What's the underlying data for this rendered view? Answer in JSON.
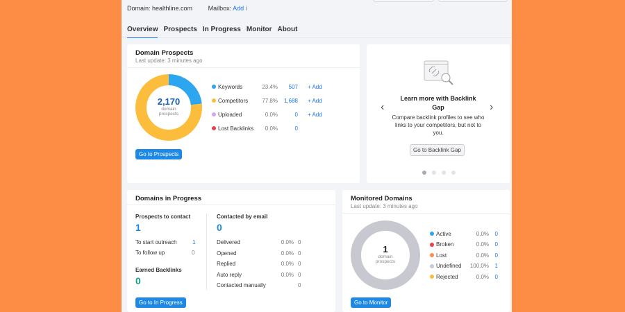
{
  "header": {
    "domain_label": "Domain: healthline.com",
    "mailbox_label": "Mailbox:",
    "mailbox_add": "Add",
    "info": "i"
  },
  "tabs": [
    {
      "label": "Overview",
      "active": true
    },
    {
      "label": "Prospects"
    },
    {
      "label": "In Progress"
    },
    {
      "label": "Monitor"
    },
    {
      "label": "About"
    }
  ],
  "domain_prospects": {
    "title": "Domain Prospects",
    "subtitle": "Last update: 3 minutes ago",
    "total": "2,170",
    "total_caption_1": "domain",
    "total_caption_2": "prospects",
    "items": [
      {
        "label": "Keywords",
        "pct": "23.4%",
        "count": "507",
        "add": "+  Add",
        "color": "#2ca6ef",
        "value": 23.4
      },
      {
        "label": "Competitors",
        "pct": "77.8%",
        "count": "1,688",
        "add": "+  Add",
        "color": "#fdbd3c",
        "value": 77.8
      },
      {
        "label": "Uploaded",
        "pct": "0.0%",
        "count": "0",
        "add": "+  Add",
        "color": "#d6a6f0",
        "value": 0
      },
      {
        "label": "Lost Backlinks",
        "pct": "0.0%",
        "count": "0",
        "add": "",
        "color": "#ee3e4e",
        "value": 0
      }
    ],
    "button": "Go to Prospects"
  },
  "promo": {
    "title": "Learn more with Backlink Gap",
    "text": "Compare backlink profiles to see who links to your competitors, but not to you.",
    "button": "Go to Backlink Gap",
    "prev": "‹",
    "next": "›",
    "active_dot": 0,
    "dots": 4
  },
  "in_progress": {
    "title": "Domains in Progress",
    "to_contact_label": "Prospects to contact",
    "to_contact": "1",
    "left_rows": [
      {
        "label": "To start outreach",
        "value": "1"
      },
      {
        "label": "To follow up",
        "value": "0"
      }
    ],
    "earned_label": "Earned Backlinks",
    "earned": "0",
    "contacted_label": "Contacted by email",
    "contacted": "0",
    "right_rows": [
      {
        "label": "Delivered",
        "pct": "0.0%",
        "value": "0"
      },
      {
        "label": "Opened",
        "pct": "0.0%",
        "value": "0"
      },
      {
        "label": "Replied",
        "pct": "0.0%",
        "value": "0"
      },
      {
        "label": "Auto reply",
        "pct": "0.0%",
        "value": "0"
      },
      {
        "label": "Contacted manually",
        "pct": "",
        "value": "0"
      }
    ],
    "button": "Go to In Progress"
  },
  "monitored": {
    "title": "Monitored Domains",
    "subtitle": "Last update: 3 minutes ago",
    "total": "1",
    "total_caption_1": "domain",
    "total_caption_2": "prospects",
    "items": [
      {
        "label": "Active",
        "pct": "0.0%",
        "count": "0",
        "color": "#2ca6ef"
      },
      {
        "label": "Broken",
        "pct": "0.0%",
        "count": "0",
        "color": "#ee3e4e"
      },
      {
        "label": "Lost",
        "pct": "0.0%",
        "count": "0",
        "color": "#fd8c45"
      },
      {
        "label": "Undefined",
        "pct": "100.0%",
        "count": "1",
        "color": "#c8c9d0"
      },
      {
        "label": "Rejected",
        "pct": "0.0%",
        "count": "0",
        "color": "#fdbd3c"
      }
    ],
    "button": "Go to Monitor"
  }
}
